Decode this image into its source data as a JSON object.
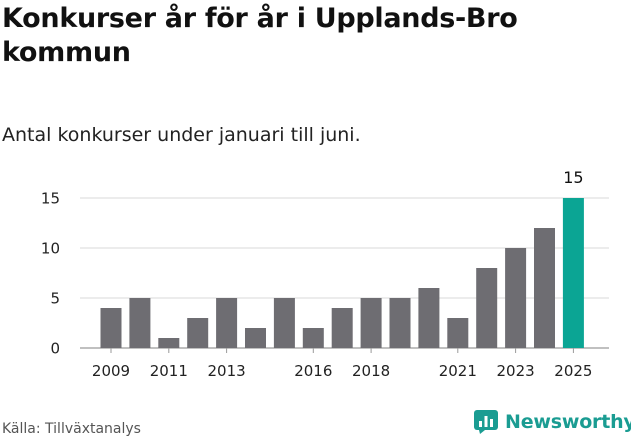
{
  "header": {
    "title": "Konkurser år för år i Upplands-Bro kommun",
    "subtitle": "Antal konkurser under januari till juni."
  },
  "footer": {
    "source": "Källa: Tillväxtanalys",
    "logo_text": "Newsworthy"
  },
  "colors": {
    "bar": "#6e6d72",
    "highlight": "#0ba594",
    "grid": "#d9d9d9",
    "logo": "#1a9c92"
  },
  "icons": {
    "logo": "bar-chart-icon"
  },
  "chart_data": {
    "type": "bar",
    "title": "Konkurser år för år i Upplands-Bro kommun",
    "subtitle": "Antal konkurser under januari till juni.",
    "categories": [
      "2009",
      "2010",
      "2011",
      "2012",
      "2013",
      "2014",
      "2015",
      "2016",
      "2017",
      "2018",
      "2019",
      "2020",
      "2021",
      "2022",
      "2023",
      "2024",
      "2025"
    ],
    "values": [
      4,
      5,
      1,
      3,
      5,
      2,
      5,
      2,
      4,
      5,
      5,
      6,
      3,
      8,
      10,
      12,
      15
    ],
    "x_tick_labels": [
      "2009",
      "2011",
      "2013",
      "2016",
      "2018",
      "2021",
      "2023",
      "2025"
    ],
    "y_ticks": [
      0,
      5,
      10,
      15
    ],
    "ylim": [
      0,
      15
    ],
    "highlight": {
      "category": "2025",
      "label": "15"
    },
    "grid": true,
    "legend": "none"
  }
}
